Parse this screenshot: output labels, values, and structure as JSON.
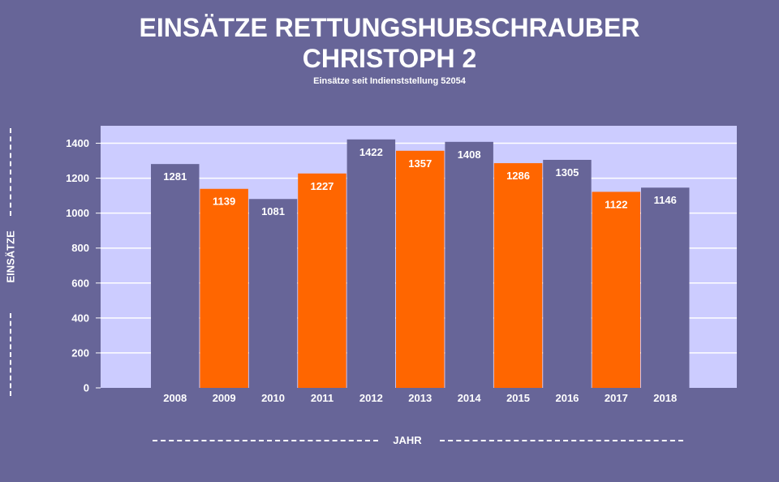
{
  "chart_data": {
    "type": "bar",
    "title_line1": "EINSÄTZE RETTUNGSHUBSCHRAUBER",
    "title_line2": "CHRISTOPH 2",
    "subtitle": "Einsätze seit Indienststellung 52054",
    "xlabel": "JAHR",
    "ylabel": "EINSÄTZE",
    "categories": [
      "2008",
      "2009",
      "2010",
      "2011",
      "2012",
      "2013",
      "2014",
      "2015",
      "2016",
      "2017",
      "2018"
    ],
    "values": [
      1281,
      1139,
      1081,
      1227,
      1422,
      1357,
      1408,
      1286,
      1305,
      1122,
      1146
    ],
    "bar_colors": [
      "#676598",
      "#ff6600",
      "#676598",
      "#ff6600",
      "#676598",
      "#ff6600",
      "#676598",
      "#ff6600",
      "#676598",
      "#ff6600",
      "#676598"
    ],
    "ylim": [
      0,
      1500
    ],
    "yticks": [
      0,
      200,
      400,
      600,
      800,
      1000,
      1200,
      1400
    ],
    "grid": true,
    "plot_background": "#ccccff",
    "background": "#676598"
  }
}
